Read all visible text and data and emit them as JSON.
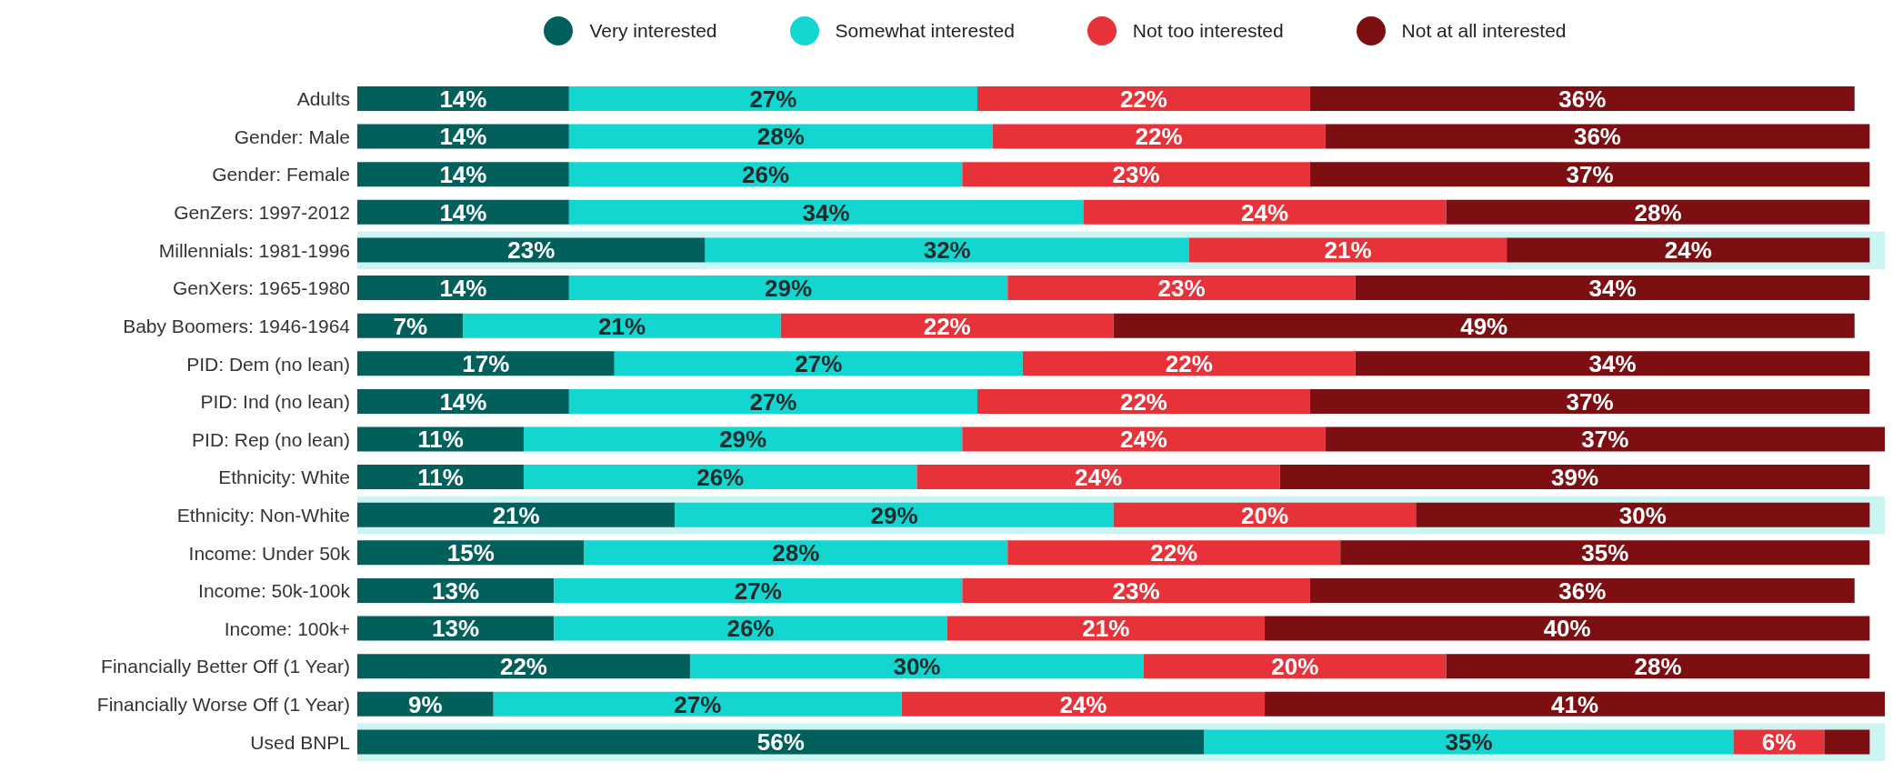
{
  "chart_data": {
    "type": "bar",
    "orientation": "horizontal",
    "stacked": true,
    "legend": "top",
    "grid": false,
    "categories": [
      "Adults",
      "Gender: Male",
      "Gender: Female",
      "GenZers: 1997-2012",
      "Millennials: 1981-1996",
      "GenXers: 1965-1980",
      "Baby Boomers: 1946-1964",
      "PID: Dem (no lean)",
      "PID: Ind (no lean)",
      "PID: Rep (no lean)",
      "Ethnicity: White",
      "Ethnicity: Non-White",
      "Income: Under 50k",
      "Income: 50k-100k",
      "Income: 100k+",
      "Financially Better Off (1 Year)",
      "Financially Worse Off (1 Year)",
      "Used BNPL"
    ],
    "series": [
      {
        "name": "Very interested",
        "color": "#02605c",
        "values": [
          14,
          14,
          14,
          14,
          23,
          14,
          7,
          17,
          14,
          11,
          11,
          21,
          15,
          13,
          13,
          22,
          9,
          56
        ],
        "value_labels": [
          "14%",
          "14%",
          "14%",
          "14%",
          "23%",
          "14%",
          "7%",
          "17%",
          "14%",
          "11%",
          "11%",
          "21%",
          "15%",
          "13%",
          "13%",
          "22%",
          "9%",
          "56%"
        ]
      },
      {
        "name": "Somewhat interested",
        "color": "#12d6cf",
        "values": [
          27,
          28,
          26,
          34,
          32,
          29,
          21,
          27,
          27,
          29,
          26,
          29,
          28,
          27,
          26,
          30,
          27,
          35
        ],
        "value_labels": [
          "27%",
          "28%",
          "26%",
          "34%",
          "32%",
          "29%",
          "21%",
          "27%",
          "27%",
          "29%",
          "26%",
          "29%",
          "28%",
          "27%",
          "26%",
          "30%",
          "27%",
          "35%"
        ]
      },
      {
        "name": "Not too interested",
        "color": "#e8323a",
        "values": [
          22,
          22,
          23,
          24,
          21,
          23,
          22,
          22,
          22,
          24,
          24,
          20,
          22,
          23,
          21,
          20,
          24,
          6
        ],
        "value_labels": [
          "22%",
          "22%",
          "23%",
          "24%",
          "21%",
          "23%",
          "22%",
          "22%",
          "22%",
          "24%",
          "24%",
          "20%",
          "22%",
          "23%",
          "21%",
          "20%",
          "24%",
          "6%"
        ]
      },
      {
        "name": "Not at all interested",
        "color": "#7d0f13",
        "values": [
          36,
          36,
          37,
          28,
          24,
          34,
          49,
          34,
          37,
          37,
          39,
          30,
          35,
          36,
          40,
          28,
          41,
          3
        ],
        "value_labels": [
          "36%",
          "36%",
          "37%",
          "28%",
          "24%",
          "34%",
          "49%",
          "34%",
          "37%",
          "37%",
          "39%",
          "30%",
          "35%",
          "36%",
          "40%",
          "28%",
          "41%",
          null
        ]
      }
    ],
    "bands": [
      {
        "axis": "y",
        "from": "Millennials: 1981-1996",
        "to": "Millennials: 1981-1996",
        "color": "#ccf4f3"
      },
      {
        "axis": "y",
        "from": "Ethnicity: Non-White",
        "to": "Ethnicity: Non-White",
        "color": "#ccf4f3"
      },
      {
        "axis": "y",
        "from": "Used BNPL",
        "to": "Used BNPL",
        "color": "#ccf4f3"
      }
    ]
  }
}
